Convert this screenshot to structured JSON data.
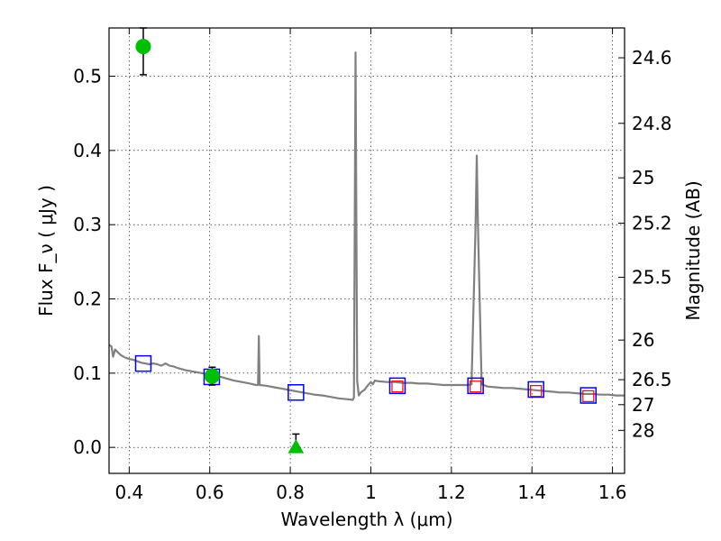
{
  "chart_data": {
    "type": "scatter",
    "xlabel": "Wavelength  λ (μm)",
    "ylabel": "Flux  F_ν  ( μJy )",
    "ylabel_right": "Magnitude (AB)",
    "xlim": [
      0.35,
      1.63
    ],
    "ylim": [
      -0.035,
      0.565
    ],
    "grid": true,
    "x_ticks": [
      {
        "v": 0.4,
        "label": "0.4"
      },
      {
        "v": 0.6,
        "label": "0.6"
      },
      {
        "v": 0.8,
        "label": "0.8"
      },
      {
        "v": 1.0,
        "label": "1"
      },
      {
        "v": 1.2,
        "label": "1.2"
      },
      {
        "v": 1.4,
        "label": "1.4"
      },
      {
        "v": 1.6,
        "label": "1.6"
      }
    ],
    "y_ticks": [
      {
        "v": 0.0,
        "label": "0.0"
      },
      {
        "v": 0.1,
        "label": "0.1"
      },
      {
        "v": 0.2,
        "label": "0.2"
      },
      {
        "v": 0.3,
        "label": "0.3"
      },
      {
        "v": 0.4,
        "label": "0.4"
      },
      {
        "v": 0.5,
        "label": "0.5"
      }
    ],
    "right_ticks": [
      {
        "mag": 24.6,
        "label": "24.6"
      },
      {
        "mag": 24.8,
        "label": "24.8"
      },
      {
        "mag": 25.0,
        "label": "25"
      },
      {
        "mag": 25.2,
        "label": "25.2"
      },
      {
        "mag": 25.5,
        "label": "25.5"
      },
      {
        "mag": 26.0,
        "label": "26"
      },
      {
        "mag": 26.5,
        "label": "26.5"
      },
      {
        "mag": 27.0,
        "label": "27"
      },
      {
        "mag": 28.0,
        "label": "28"
      }
    ],
    "model_spectrum": {
      "color": "#808080",
      "points": [
        [
          0.35,
          0.138
        ],
        [
          0.356,
          0.136
        ],
        [
          0.36,
          0.122
        ],
        [
          0.365,
          0.132
        ],
        [
          0.372,
          0.128
        ],
        [
          0.38,
          0.124
        ],
        [
          0.39,
          0.121
        ],
        [
          0.4,
          0.119
        ],
        [
          0.41,
          0.118
        ],
        [
          0.42,
          0.116
        ],
        [
          0.43,
          0.114
        ],
        [
          0.44,
          0.113
        ],
        [
          0.45,
          0.112
        ],
        [
          0.46,
          0.113
        ],
        [
          0.47,
          0.112
        ],
        [
          0.48,
          0.11
        ],
        [
          0.49,
          0.113
        ],
        [
          0.5,
          0.11
        ],
        [
          0.51,
          0.109
        ],
        [
          0.52,
          0.107
        ],
        [
          0.54,
          0.104
        ],
        [
          0.56,
          0.102
        ],
        [
          0.58,
          0.1
        ],
        [
          0.6,
          0.098
        ],
        [
          0.62,
          0.096
        ],
        [
          0.64,
          0.093
        ],
        [
          0.66,
          0.09
        ],
        [
          0.68,
          0.088
        ],
        [
          0.7,
          0.086
        ],
        [
          0.715,
          0.084
        ],
        [
          0.72,
          0.084
        ],
        [
          0.722,
          0.15
        ],
        [
          0.724,
          0.084
        ],
        [
          0.74,
          0.083
        ],
        [
          0.76,
          0.081
        ],
        [
          0.78,
          0.079
        ],
        [
          0.8,
          0.077
        ],
        [
          0.82,
          0.075
        ],
        [
          0.84,
          0.073
        ],
        [
          0.86,
          0.071
        ],
        [
          0.88,
          0.07
        ],
        [
          0.9,
          0.068
        ],
        [
          0.92,
          0.066
        ],
        [
          0.94,
          0.065
        ],
        [
          0.955,
          0.064
        ],
        [
          0.958,
          0.067
        ],
        [
          0.962,
          0.532
        ],
        [
          0.966,
          0.09
        ],
        [
          0.97,
          0.07
        ],
        [
          0.975,
          0.074
        ],
        [
          0.985,
          0.078
        ],
        [
          0.99,
          0.082
        ],
        [
          1.0,
          0.088
        ],
        [
          1.005,
          0.085
        ],
        [
          1.01,
          0.09
        ],
        [
          1.02,
          0.089
        ],
        [
          1.04,
          0.088
        ],
        [
          1.06,
          0.088
        ],
        [
          1.08,
          0.087
        ],
        [
          1.1,
          0.087
        ],
        [
          1.12,
          0.086
        ],
        [
          1.14,
          0.086
        ],
        [
          1.16,
          0.085
        ],
        [
          1.18,
          0.084
        ],
        [
          1.2,
          0.084
        ],
        [
          1.22,
          0.084
        ],
        [
          1.24,
          0.084
        ],
        [
          1.25,
          0.085
        ],
        [
          1.26,
          0.3
        ],
        [
          1.263,
          0.393
        ],
        [
          1.266,
          0.3
        ],
        [
          1.275,
          0.085
        ],
        [
          1.29,
          0.082
        ],
        [
          1.31,
          0.081
        ],
        [
          1.33,
          0.08
        ],
        [
          1.35,
          0.08
        ],
        [
          1.37,
          0.079
        ],
        [
          1.39,
          0.078
        ],
        [
          1.41,
          0.077
        ],
        [
          1.43,
          0.076
        ],
        [
          1.45,
          0.075
        ],
        [
          1.47,
          0.074
        ],
        [
          1.49,
          0.074
        ],
        [
          1.51,
          0.073
        ],
        [
          1.53,
          0.072
        ],
        [
          1.55,
          0.072
        ],
        [
          1.57,
          0.071
        ],
        [
          1.59,
          0.071
        ],
        [
          1.61,
          0.07
        ],
        [
          1.63,
          0.07
        ]
      ]
    },
    "model_photometry_blue": {
      "color": "#0000ff",
      "points": [
        [
          0.435,
          0.113
        ],
        [
          0.605,
          0.095
        ],
        [
          0.814,
          0.074
        ],
        [
          1.066,
          0.083
        ],
        [
          1.26,
          0.083
        ],
        [
          1.41,
          0.078
        ],
        [
          1.54,
          0.07
        ]
      ]
    },
    "model_photometry_red": {
      "color": "#ff0000",
      "points": [
        [
          1.066,
          0.082
        ],
        [
          1.26,
          0.082
        ],
        [
          1.41,
          0.076
        ],
        [
          1.54,
          0.069
        ]
      ]
    },
    "observed_detections": {
      "color": "#00bf00",
      "points": [
        {
          "x": 0.435,
          "y": 0.54,
          "err_lo": 0.502,
          "err_hi": 0.565
        },
        {
          "x": 0.606,
          "y": 0.096,
          "err_lo": 0.084,
          "err_hi": 0.108
        }
      ]
    },
    "observed_upper_limits": {
      "color": "#00bf00",
      "points": [
        {
          "x": 0.814,
          "y": 0.0,
          "err_lo": 0.0,
          "err_hi": 0.018
        }
      ]
    }
  }
}
